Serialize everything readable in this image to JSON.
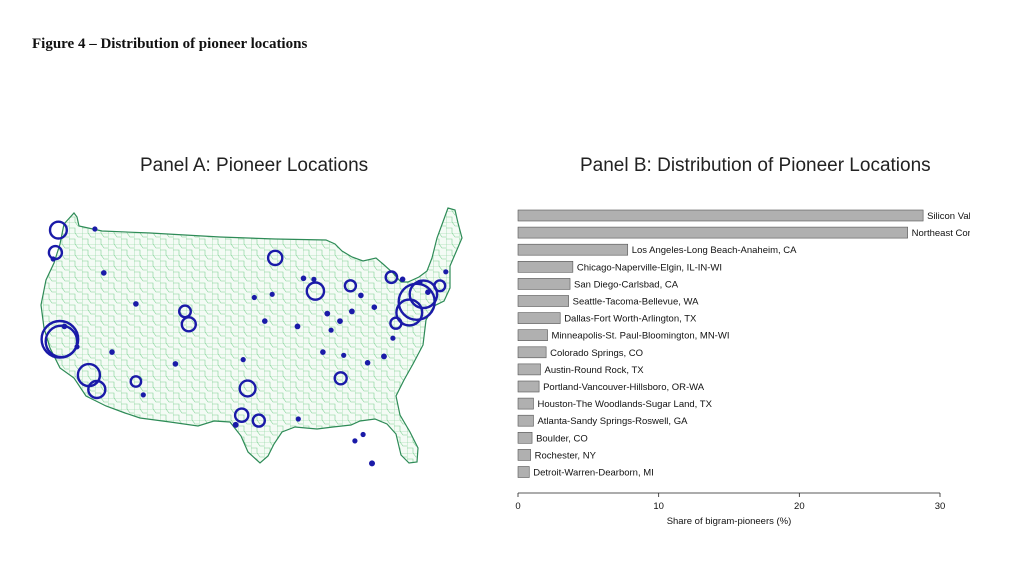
{
  "figure_title": "Figure 4 – Distribution of pioneer locations",
  "panel_a": {
    "title": "Panel A: Pioneer Locations"
  },
  "panel_b": {
    "title": "Panel B: Distribution of Pioneer Locations"
  },
  "colors": {
    "map_fill": "#f4fbf5",
    "map_lines": "#4caf6a",
    "marker": "#1a1aa8",
    "bar_fill": "#b0b0b0",
    "bar_stroke": "#555555"
  },
  "chart_data": [
    {
      "type": "bar",
      "orientation": "horizontal",
      "title": "Panel B: Distribution of Pioneer Locations",
      "xlabel": "Share of bigram-pioneers (%)",
      "ylabel": "",
      "xlim": [
        0,
        30
      ],
      "xticks": [
        0,
        10,
        20,
        30
      ],
      "grid": false,
      "categories": [
        "Silicon Valley",
        "Northeast Corridor",
        "Los Angeles-Long Beach-Anaheim, CA",
        "Chicago-Naperville-Elgin, IL-IN-WI",
        "San Diego-Carlsbad, CA",
        "Seattle-Tacoma-Bellevue, WA",
        "Dallas-Fort Worth-Arlington, TX",
        "Minneapolis-St. Paul-Bloomington, MN-WI",
        "Colorado Springs, CO",
        "Austin-Round Rock, TX",
        "Portland-Vancouver-Hillsboro, OR-WA",
        "Houston-The Woodlands-Sugar Land, TX",
        "Atlanta-Sandy Springs-Roswell, GA",
        "Boulder, CO",
        "Rochester, NY",
        "Detroit-Warren-Dearborn, MI"
      ],
      "values": [
        28.8,
        27.7,
        7.8,
        3.9,
        3.7,
        3.6,
        3.0,
        2.1,
        2.0,
        1.6,
        1.5,
        1.1,
        1.1,
        1.0,
        0.9,
        0.8
      ]
    },
    {
      "type": "scatter",
      "subtype": "bubble-map",
      "title": "Panel A: Pioneer Locations",
      "region": "Contiguous United States (commuting-zone boundaries)",
      "marker": "hollow circle sized by share of pioneers",
      "points": [
        {
          "lon": -122.1,
          "lat": 37.4,
          "size": 28.8
        },
        {
          "lon": -121.9,
          "lat": 37.2,
          "size": 20.0
        },
        {
          "lon": -74.2,
          "lat": 40.9,
          "size": 27.7
        },
        {
          "lon": -73.3,
          "lat": 41.6,
          "size": 14.0
        },
        {
          "lon": -75.2,
          "lat": 39.9,
          "size": 12.0
        },
        {
          "lon": -118.2,
          "lat": 34.05,
          "size": 7.8
        },
        {
          "lon": -117.15,
          "lat": 32.7,
          "size": 3.7
        },
        {
          "lon": -87.8,
          "lat": 41.9,
          "size": 3.9
        },
        {
          "lon": -122.3,
          "lat": 47.6,
          "size": 3.6
        },
        {
          "lon": -96.9,
          "lat": 32.8,
          "size": 3.0
        },
        {
          "lon": -93.2,
          "lat": 45.0,
          "size": 2.1
        },
        {
          "lon": -104.8,
          "lat": 38.8,
          "size": 2.0
        },
        {
          "lon": -105.3,
          "lat": 40.0,
          "size": 1.0
        },
        {
          "lon": -97.7,
          "lat": 30.3,
          "size": 1.6
        },
        {
          "lon": -95.4,
          "lat": 29.8,
          "size": 1.1
        },
        {
          "lon": -122.7,
          "lat": 45.5,
          "size": 1.5
        },
        {
          "lon": -84.4,
          "lat": 33.75,
          "size": 1.1
        },
        {
          "lon": -77.6,
          "lat": 43.2,
          "size": 0.9
        },
        {
          "lon": -83.1,
          "lat": 42.4,
          "size": 0.8
        },
        {
          "lon": -77.0,
          "lat": 38.9,
          "size": 0.8
        },
        {
          "lon": -71.1,
          "lat": 42.4,
          "size": 0.7
        },
        {
          "lon": -111.9,
          "lat": 33.45,
          "size": 0.6
        },
        {
          "lon": -80.2,
          "lat": 25.8,
          "size": 0.5
        },
        {
          "lon": -98.5,
          "lat": 29.4,
          "size": 0.5
        },
        {
          "lon": -84.5,
          "lat": 39.1,
          "size": 0.4
        },
        {
          "lon": -86.2,
          "lat": 39.8,
          "size": 0.4
        },
        {
          "lon": -82.9,
          "lat": 40.0,
          "size": 0.4
        },
        {
          "lon": -90.2,
          "lat": 38.6,
          "size": 0.4
        },
        {
          "lon": -111.9,
          "lat": 40.7,
          "size": 0.3
        },
        {
          "lon": -78.6,
          "lat": 35.8,
          "size": 0.4
        },
        {
          "lon": -80.8,
          "lat": 35.2,
          "size": 0.3
        },
        {
          "lon": -79.9,
          "lat": 40.4,
          "size": 0.3
        },
        {
          "lon": -81.7,
          "lat": 41.5,
          "size": 0.3
        },
        {
          "lon": -89.4,
          "lat": 43.1,
          "size": 0.3
        },
        {
          "lon": -94.6,
          "lat": 39.1,
          "size": 0.3
        },
        {
          "lon": -86.8,
          "lat": 36.2,
          "size": 0.3
        },
        {
          "lon": -106.6,
          "lat": 35.1,
          "size": 0.3
        },
        {
          "lon": -115.1,
          "lat": 36.2,
          "size": 0.3
        },
        {
          "lon": -116.2,
          "lat": 43.6,
          "size": 0.3
        },
        {
          "lon": -73.8,
          "lat": 42.7,
          "size": 0.3
        },
        {
          "lon": -76.1,
          "lat": 43.0,
          "size": 0.3
        },
        {
          "lon": -72.7,
          "lat": 41.8,
          "size": 0.3
        },
        {
          "lon": -121.5,
          "lat": 38.6,
          "size": 0.3
        },
        {
          "lon": -119.8,
          "lat": 36.7,
          "size": 0.2
        },
        {
          "lon": -110.9,
          "lat": 32.2,
          "size": 0.2
        },
        {
          "lon": -97.5,
          "lat": 35.5,
          "size": 0.2
        },
        {
          "lon": -90.1,
          "lat": 29.95,
          "size": 0.2
        },
        {
          "lon": -81.4,
          "lat": 28.5,
          "size": 0.2
        },
        {
          "lon": -82.5,
          "lat": 27.9,
          "size": 0.2
        },
        {
          "lon": -85.7,
          "lat": 38.25,
          "size": 0.2
        },
        {
          "lon": -88.0,
          "lat": 43.0,
          "size": 0.2
        },
        {
          "lon": -96.0,
          "lat": 41.3,
          "size": 0.2
        },
        {
          "lon": -93.6,
          "lat": 41.6,
          "size": 0.2
        },
        {
          "lon": -117.4,
          "lat": 47.7,
          "size": 0.2
        },
        {
          "lon": -123.0,
          "lat": 44.9,
          "size": 0.2
        },
        {
          "lon": -84.0,
          "lat": 35.9,
          "size": 0.2
        },
        {
          "lon": -77.4,
          "lat": 37.5,
          "size": 0.2
        },
        {
          "lon": -70.3,
          "lat": 43.7,
          "size": 0.2
        }
      ]
    }
  ]
}
